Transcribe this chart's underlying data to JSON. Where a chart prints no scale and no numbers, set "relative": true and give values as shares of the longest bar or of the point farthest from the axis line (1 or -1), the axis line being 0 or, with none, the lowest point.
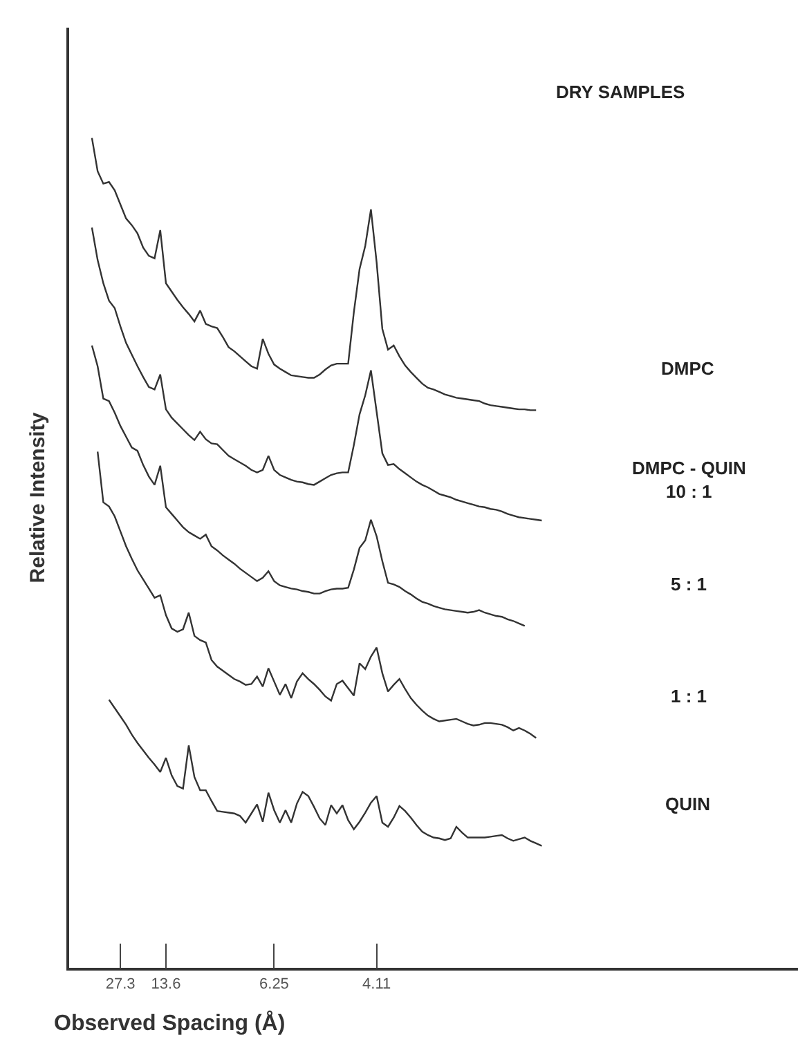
{
  "chart_data": {
    "type": "line",
    "relative": true,
    "xlabel": "Observed Spacing (Å)",
    "ylabel": "Relative Intensity",
    "annotations": [
      "DRY SAMPLES"
    ],
    "categories": [
      null,
      null,
      null,
      null,
      null,
      "27.3",
      null,
      null,
      null,
      null,
      null,
      null,
      null,
      "13.6",
      null,
      null,
      null,
      null,
      null,
      null,
      null,
      null,
      null,
      null,
      null,
      null,
      null,
      null,
      null,
      null,
      null,
      null,
      "6.25",
      null,
      null,
      null,
      null,
      null,
      null,
      null,
      null,
      null,
      null,
      null,
      null,
      null,
      null,
      null,
      null,
      null,
      "4.11",
      null,
      null,
      null,
      null,
      null,
      null,
      null,
      null,
      null,
      null,
      null,
      null,
      null,
      null,
      null,
      null,
      null,
      null,
      null,
      null,
      null,
      null,
      null,
      null,
      null,
      null,
      null,
      null,
      null
    ],
    "series": [
      {
        "name": "DMPC",
        "color": "#333333",
        "values": [
          1.0,
          0.96,
          0.945,
          0.947,
          0.937,
          0.92,
          0.903,
          0.895,
          0.885,
          0.868,
          0.858,
          0.855,
          0.889,
          0.825,
          0.815,
          0.805,
          0.796,
          0.788,
          0.779,
          0.792,
          0.776,
          0.773,
          0.771,
          0.76,
          0.748,
          0.743,
          0.737,
          0.731,
          0.725,
          0.722,
          0.758,
          0.74,
          0.727,
          0.722,
          0.718,
          0.714,
          0.713,
          0.712,
          0.711,
          0.711,
          0.715,
          0.721,
          0.726,
          0.728,
          0.728,
          0.728,
          0.79,
          0.842,
          0.87,
          0.914,
          0.85,
          0.77,
          0.745,
          0.75,
          0.737,
          0.726,
          0.718,
          0.711,
          0.704,
          0.699,
          0.697,
          0.694,
          0.691,
          0.689,
          0.687,
          0.686,
          0.685,
          0.684,
          0.683,
          0.68,
          0.678,
          0.677,
          0.676,
          0.675,
          0.674,
          0.673,
          0.673,
          0.672,
          0.672,
          null
        ]
      },
      {
        "name": "DMPC - QUIN\n10 : 1",
        "color": "#333333",
        "values": [
          0.892,
          0.853,
          0.825,
          0.804,
          0.795,
          0.773,
          0.753,
          0.739,
          0.725,
          0.712,
          0.7,
          0.697,
          0.715,
          0.673,
          0.663,
          0.656,
          0.649,
          0.642,
          0.636,
          0.646,
          0.637,
          0.632,
          0.631,
          0.624,
          0.617,
          0.613,
          0.609,
          0.605,
          0.6,
          0.597,
          0.6,
          0.617,
          0.6,
          0.594,
          0.591,
          0.588,
          0.586,
          0.585,
          0.583,
          0.582,
          0.586,
          0.59,
          0.594,
          0.596,
          0.597,
          0.597,
          0.63,
          0.667,
          0.69,
          0.72,
          0.67,
          0.62,
          0.606,
          0.607,
          0.601,
          0.596,
          0.591,
          0.586,
          0.582,
          0.579,
          0.575,
          0.571,
          0.569,
          0.567,
          0.564,
          0.562,
          0.56,
          0.558,
          0.556,
          0.555,
          0.553,
          0.552,
          0.55,
          0.547,
          0.545,
          0.543,
          0.542,
          0.541,
          0.54,
          0.539
        ]
      },
      {
        "name": "5 : 1",
        "color": "#333333",
        "values": [
          0.75,
          0.725,
          0.686,
          0.683,
          0.669,
          0.653,
          0.64,
          0.627,
          0.623,
          0.606,
          0.592,
          0.582,
          0.605,
          0.555,
          0.547,
          0.539,
          0.531,
          0.525,
          0.521,
          0.517,
          0.522,
          0.508,
          0.503,
          0.497,
          0.492,
          0.487,
          0.481,
          0.476,
          0.471,
          0.466,
          0.47,
          0.478,
          0.466,
          0.461,
          0.459,
          0.457,
          0.456,
          0.454,
          0.453,
          0.451,
          0.451,
          0.454,
          0.456,
          0.457,
          0.457,
          0.458,
          0.48,
          0.506,
          0.515,
          0.54,
          0.52,
          0.49,
          0.464,
          0.462,
          0.459,
          0.454,
          0.45,
          0.445,
          0.441,
          0.439,
          0.436,
          0.434,
          0.432,
          0.431,
          0.43,
          0.429,
          0.428,
          0.429,
          0.431,
          0.428,
          0.426,
          0.424,
          0.423,
          0.42,
          0.418,
          0.415,
          0.412,
          null,
          null,
          null
        ]
      },
      {
        "name": "1 : 1",
        "color": "#333333",
        "values": [
          null,
          0.622,
          0.561,
          0.556,
          0.544,
          0.526,
          0.508,
          0.493,
          0.479,
          0.468,
          0.457,
          0.446,
          0.449,
          0.425,
          0.409,
          0.405,
          0.408,
          0.428,
          0.4,
          0.395,
          0.392,
          0.371,
          0.363,
          0.358,
          0.353,
          0.348,
          0.345,
          0.341,
          0.342,
          0.351,
          0.339,
          0.361,
          0.345,
          0.329,
          0.342,
          0.325,
          0.345,
          0.355,
          0.348,
          0.342,
          0.335,
          0.327,
          0.322,
          0.342,
          0.346,
          0.337,
          0.328,
          0.367,
          0.36,
          0.375,
          0.386,
          0.355,
          0.333,
          0.341,
          0.348,
          0.336,
          0.325,
          0.317,
          0.31,
          0.304,
          0.3,
          0.297,
          0.298,
          0.299,
          0.3,
          0.297,
          0.294,
          0.292,
          0.293,
          0.295,
          0.295,
          0.294,
          0.293,
          0.29,
          0.286,
          0.289,
          0.286,
          0.282,
          0.277,
          null
        ]
      },
      {
        "name": "QUIN",
        "color": "#333333",
        "values": [
          null,
          null,
          null,
          0.323,
          0.313,
          0.303,
          0.293,
          0.281,
          0.271,
          0.262,
          0.253,
          0.245,
          0.236,
          0.253,
          0.232,
          0.219,
          0.216,
          0.268,
          0.23,
          0.214,
          0.214,
          0.201,
          0.189,
          0.188,
          0.187,
          0.186,
          0.183,
          0.175,
          0.186,
          0.197,
          0.176,
          0.211,
          0.19,
          0.175,
          0.19,
          0.175,
          0.198,
          0.212,
          0.207,
          0.194,
          0.18,
          0.172,
          0.196,
          0.186,
          0.196,
          0.178,
          0.167,
          0.176,
          0.187,
          0.199,
          0.207,
          0.175,
          0.17,
          0.181,
          0.195,
          0.189,
          0.181,
          0.172,
          0.164,
          0.16,
          0.157,
          0.156,
          0.154,
          0.156,
          0.17,
          0.163,
          0.157,
          0.157,
          0.157,
          0.157,
          0.158,
          0.159,
          0.16,
          0.156,
          0.153,
          0.155,
          0.157,
          0.153,
          0.15,
          0.147
        ]
      }
    ]
  }
}
